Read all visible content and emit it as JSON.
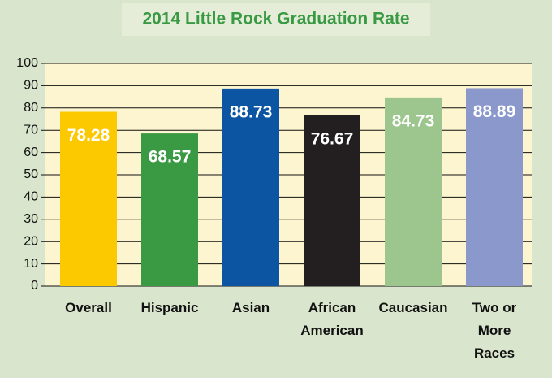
{
  "chart_data": {
    "type": "bar",
    "title": "2014 Little Rock Graduation Rate",
    "categories": [
      [
        "Overall"
      ],
      [
        "Hispanic"
      ],
      [
        "Asian"
      ],
      [
        "African",
        "American"
      ],
      [
        "Caucasian"
      ],
      [
        "Two or",
        "More",
        "Races"
      ]
    ],
    "values": [
      78.28,
      68.57,
      88.73,
      76.67,
      84.73,
      88.89
    ],
    "colors": [
      "#fcc800",
      "#3a9a44",
      "#0b55a3",
      "#231f20",
      "#9dc68e",
      "#8a98cc"
    ],
    "ylim": [
      0,
      100
    ],
    "yticks": [
      0,
      10,
      20,
      30,
      40,
      50,
      60,
      70,
      80,
      90,
      100
    ],
    "grid": true
  }
}
